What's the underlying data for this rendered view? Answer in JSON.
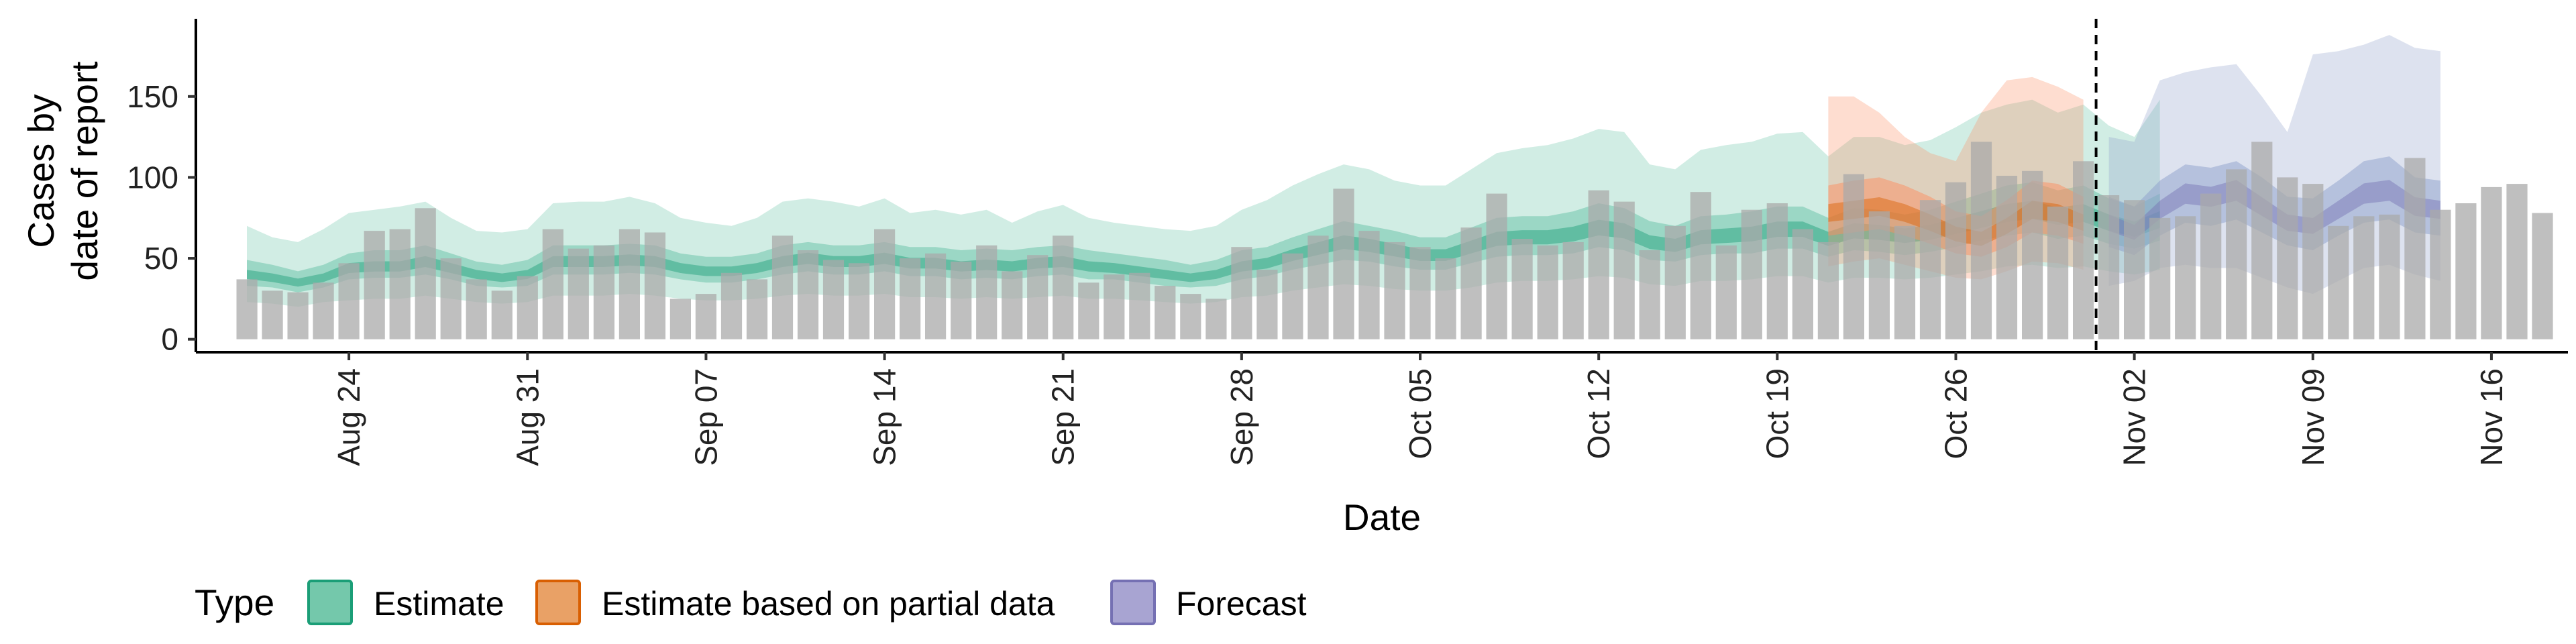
{
  "chart_data": {
    "type": "area",
    "xlabel": "Date",
    "ylabel_lines": [
      "Cases by",
      "date of report"
    ],
    "x_range": [
      "2022-08-18",
      "2022-11-19"
    ],
    "year_assumed": 2022,
    "ylim": [
      -8,
      198
    ],
    "y_ticks": [
      0,
      50,
      100,
      150
    ],
    "x_ticks": [
      {
        "date": "2022-08-24",
        "label": "Aug 24"
      },
      {
        "date": "2022-08-31",
        "label": "Aug 31"
      },
      {
        "date": "2022-09-07",
        "label": "Sep 07"
      },
      {
        "date": "2022-09-14",
        "label": "Sep 14"
      },
      {
        "date": "2022-09-21",
        "label": "Sep 21"
      },
      {
        "date": "2022-09-28",
        "label": "Sep 28"
      },
      {
        "date": "2022-10-05",
        "label": "Oct 05"
      },
      {
        "date": "2022-10-12",
        "label": "Oct 12"
      },
      {
        "date": "2022-10-19",
        "label": "Oct 19"
      },
      {
        "date": "2022-10-26",
        "label": "Oct 26"
      },
      {
        "date": "2022-11-02",
        "label": "Nov 02"
      },
      {
        "date": "2022-11-09",
        "label": "Nov 09"
      },
      {
        "date": "2022-11-16",
        "label": "Nov 16"
      }
    ],
    "bars": {
      "start_date": "2022-08-20",
      "color": "#a9a9a9",
      "values": [
        37,
        30,
        29,
        35,
        47,
        67,
        68,
        81,
        50,
        37,
        30,
        39,
        68,
        56,
        58,
        68,
        66,
        25,
        28,
        41,
        37,
        64,
        55,
        49,
        47,
        68,
        50,
        53,
        48,
        58,
        42,
        52,
        64,
        35,
        40,
        41,
        33,
        28,
        25,
        57,
        43,
        53,
        64,
        93,
        67,
        60,
        57,
        50,
        69,
        90,
        62,
        58,
        60,
        92,
        85,
        55,
        70,
        91,
        58,
        80,
        84,
        68,
        60,
        102,
        79,
        70,
        86,
        97,
        122,
        101,
        104,
        82,
        110,
        89,
        86,
        75,
        76,
        90,
        105,
        122,
        100,
        96,
        70,
        76,
        77,
        112,
        80,
        84,
        94,
        96,
        78
      ]
    },
    "cutoff_date": "2022-10-31",
    "legend_title": "Type",
    "legend_position": "bottom",
    "series": [
      {
        "name": "Estimate",
        "color": "#1b9e77",
        "fill": "#66c2a5",
        "start_date": "2022-08-20",
        "median": [
          40,
          38,
          35,
          38,
          44,
          45,
          45,
          48,
          44,
          40,
          38,
          40,
          48,
          48,
          48,
          49,
          48,
          44,
          42,
          42,
          44,
          48,
          50,
          48,
          48,
          50,
          47,
          47,
          45,
          46,
          45,
          47,
          48,
          45,
          44,
          42,
          40,
          38,
          40,
          45,
          47,
          52,
          56,
          60,
          58,
          55,
          52,
          52,
          57,
          62,
          63,
          63,
          65,
          69,
          67,
          60,
          58,
          63,
          64,
          65,
          68,
          68,
          62,
          67,
          66,
          64,
          66,
          70,
          74,
          78,
          80,
          76,
          78,
          72,
          68,
          74
        ],
        "lower90": [
          23,
          22,
          20,
          23,
          24,
          25,
          25,
          27,
          25,
          23,
          22,
          23,
          27,
          27,
          27,
          28,
          27,
          25,
          24,
          24,
          25,
          27,
          28,
          27,
          27,
          28,
          26,
          26,
          25,
          26,
          25,
          26,
          27,
          25,
          25,
          24,
          23,
          22,
          23,
          26,
          27,
          30,
          32,
          34,
          33,
          31,
          30,
          30,
          32,
          35,
          36,
          36,
          37,
          39,
          38,
          34,
          33,
          36,
          36,
          37,
          39,
          39,
          35,
          38,
          38,
          37,
          38,
          40,
          42,
          45,
          46,
          44,
          45,
          42,
          40,
          43
        ],
        "upper90": [
          70,
          63,
          60,
          68,
          78,
          80,
          82,
          85,
          75,
          67,
          66,
          68,
          84,
          85,
          85,
          88,
          84,
          75,
          72,
          70,
          75,
          85,
          87,
          85,
          82,
          87,
          78,
          80,
          77,
          80,
          72,
          79,
          83,
          75,
          72,
          70,
          68,
          67,
          70,
          80,
          86,
          95,
          102,
          108,
          105,
          98,
          95,
          95,
          105,
          115,
          118,
          120,
          124,
          130,
          128,
          108,
          105,
          117,
          120,
          122,
          127,
          128,
          113,
          125,
          125,
          120,
          123,
          131,
          140,
          145,
          148,
          140,
          145,
          132,
          125,
          148
        ],
        "lower50": [
          33,
          32,
          29,
          32,
          37,
          38,
          38,
          40,
          37,
          33,
          32,
          33,
          40,
          40,
          40,
          41,
          40,
          37,
          35,
          35,
          37,
          40,
          42,
          40,
          40,
          42,
          39,
          39,
          37,
          38,
          37,
          39,
          40,
          37,
          37,
          35,
          33,
          32,
          33,
          37,
          39,
          43,
          46,
          49,
          48,
          45,
          43,
          43,
          47,
          51,
          52,
          52,
          53,
          57,
          55,
          49,
          48,
          52,
          53,
          53,
          56,
          56,
          51,
          55,
          54,
          52,
          54,
          57,
          61,
          64,
          66,
          62,
          64,
          59,
          56,
          61
        ],
        "upper50": [
          49,
          46,
          42,
          46,
          53,
          55,
          55,
          58,
          53,
          48,
          46,
          49,
          58,
          58,
          58,
          59,
          58,
          53,
          51,
          51,
          53,
          58,
          60,
          58,
          58,
          60,
          57,
          57,
          55,
          56,
          55,
          57,
          58,
          55,
          53,
          51,
          49,
          46,
          49,
          55,
          57,
          63,
          68,
          73,
          70,
          67,
          63,
          63,
          69,
          75,
          76,
          76,
          79,
          84,
          81,
          73,
          70,
          76,
          77,
          79,
          82,
          82,
          75,
          81,
          80,
          77,
          80,
          85,
          90,
          95,
          97,
          92,
          95,
          87,
          82,
          90
        ]
      },
      {
        "name": "Estimate based on partial data",
        "color": "#d95f02",
        "fill": "#fc8d62",
        "start_date": "2022-10-21",
        "median": [
          78,
          80,
          82,
          78,
          72,
          65,
          62,
          70,
          80,
          78,
          72
        ],
        "lower90": [
          45,
          48,
          50,
          46,
          42,
          38,
          37,
          42,
          48,
          47,
          43
        ],
        "upper90": [
          150,
          150,
          140,
          125,
          115,
          110,
          140,
          160,
          162,
          156,
          148
        ],
        "lower50": [
          64,
          66,
          68,
          64,
          59,
          53,
          51,
          57,
          66,
          64,
          59
        ],
        "upper50": [
          95,
          98,
          100,
          95,
          88,
          79,
          76,
          86,
          98,
          96,
          88
        ]
      },
      {
        "name": "Forecast",
        "color": "#7570b3",
        "fill": "#8da0cb",
        "start_date": "2022-11-01",
        "median": [
          72,
          66,
          80,
          90,
          88,
          92,
          82,
          72,
          70,
          80,
          90,
          92,
          82,
          80
        ],
        "lower90": [
          33,
          36,
          44,
          46,
          44,
          44,
          38,
          32,
          28,
          36,
          44,
          46,
          40,
          36
        ],
        "upper90": [
          125,
          122,
          160,
          165,
          168,
          170,
          150,
          128,
          176,
          178,
          182,
          188,
          180,
          178
        ],
        "lower50": [
          57,
          52,
          64,
          72,
          70,
          74,
          66,
          58,
          55,
          64,
          72,
          74,
          66,
          64
        ],
        "upper50": [
          88,
          82,
          98,
          108,
          106,
          110,
          100,
          88,
          87,
          98,
          110,
          113,
          100,
          98
        ]
      }
    ]
  }
}
